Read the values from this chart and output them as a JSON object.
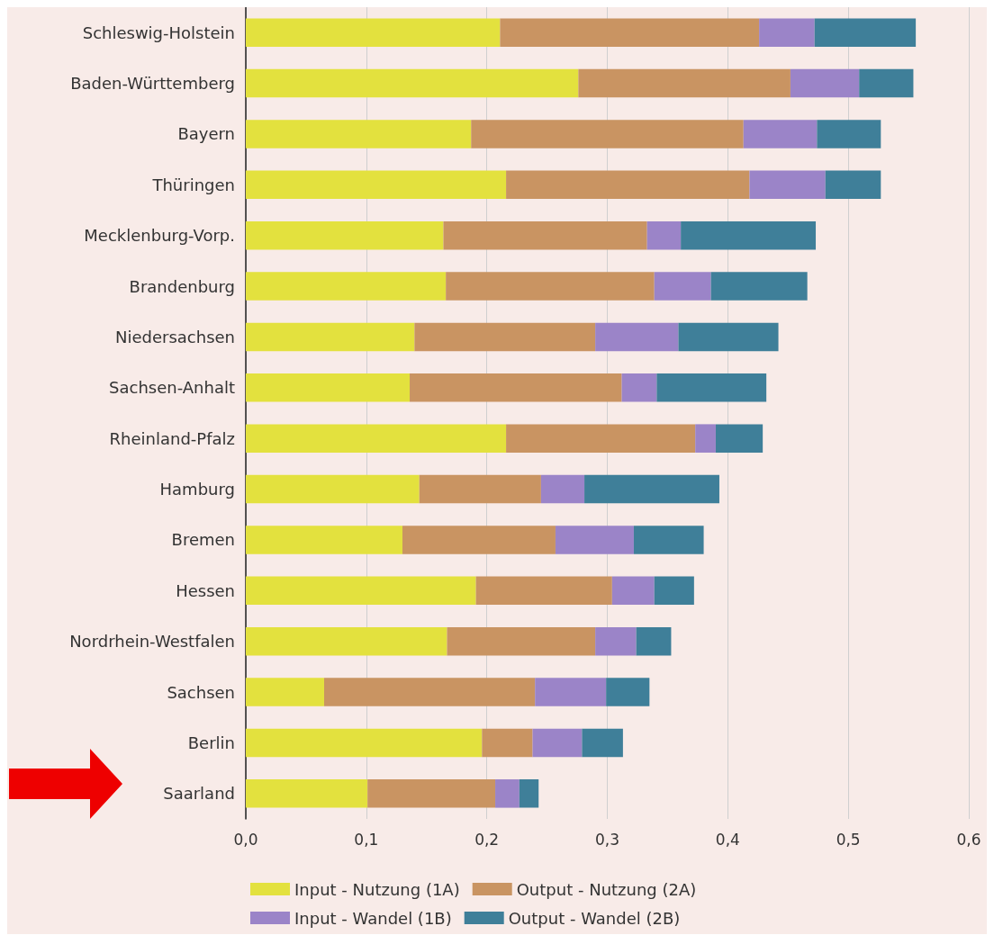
{
  "chart_data": {
    "type": "bar",
    "orientation": "horizontal",
    "stacked": true,
    "categories": [
      "Schleswig-Holstein",
      "Baden-Württemberg",
      "Bayern",
      "Thüringen",
      "Mecklenburg-Vorp.",
      "Brandenburg",
      "Niedersachsen",
      "Sachsen-Anhalt",
      "Rheinland-Pfalz",
      "Hamburg",
      "Bremen",
      "Hessen",
      "Nordrhein-Westfalen",
      "Sachsen",
      "Berlin",
      "Saarland"
    ],
    "series": [
      {
        "name": "Input - Nutzung (1A)",
        "color": "#e3e13e",
        "values": [
          0.211,
          0.276,
          0.187,
          0.216,
          0.164,
          0.166,
          0.14,
          0.136,
          0.216,
          0.144,
          0.13,
          0.191,
          0.167,
          0.065,
          0.196,
          0.101
        ]
      },
      {
        "name": "Output - Nutzung (2A)",
        "color": "#c99462",
        "values": [
          0.215,
          0.176,
          0.226,
          0.202,
          0.169,
          0.173,
          0.15,
          0.176,
          0.157,
          0.101,
          0.127,
          0.113,
          0.123,
          0.175,
          0.042,
          0.106
        ]
      },
      {
        "name": "Input - Wandel (1B)",
        "color": "#9b84c8",
        "values": [
          0.046,
          0.057,
          0.061,
          0.063,
          0.028,
          0.047,
          0.069,
          0.029,
          0.017,
          0.036,
          0.065,
          0.035,
          0.034,
          0.059,
          0.041,
          0.02
        ]
      },
      {
        "name": "Output - Wandel (2B)",
        "color": "#3f7f99",
        "values": [
          0.084,
          0.045,
          0.053,
          0.046,
          0.112,
          0.08,
          0.083,
          0.091,
          0.039,
          0.112,
          0.058,
          0.033,
          0.029,
          0.036,
          0.034,
          0.016
        ]
      }
    ],
    "xlim": [
      0,
      0.6
    ],
    "xticks": [
      {
        "value": 0,
        "label": "0,0"
      },
      {
        "value": 0.1,
        "label": "0,1"
      },
      {
        "value": 0.2,
        "label": "0,2"
      },
      {
        "value": 0.3,
        "label": "0,3"
      },
      {
        "value": 0.4,
        "label": "0,4"
      },
      {
        "value": 0.5,
        "label": "0,5"
      },
      {
        "value": 0.6,
        "label": "0,6"
      }
    ],
    "grid": "x",
    "legend": "bottom"
  }
}
